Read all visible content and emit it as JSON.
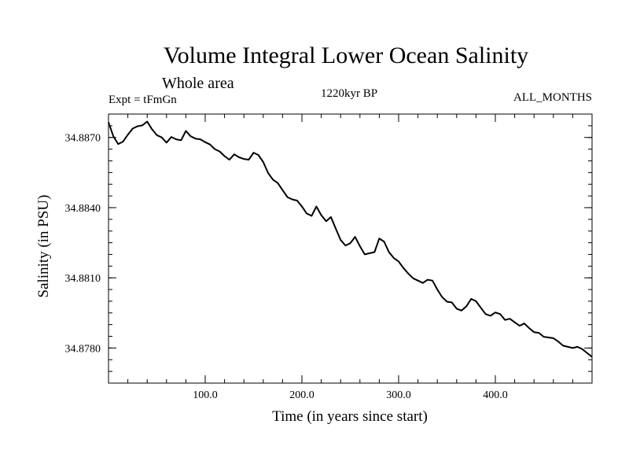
{
  "chart_data": {
    "type": "line",
    "title": "Volume Integral Lower Ocean Salinity",
    "subtitle": "Whole area",
    "experiment": "Expt = tFmGn",
    "period": "1220kyr BP",
    "months": "ALL_MONTHS",
    "xlabel": "Time (in years since start)",
    "ylabel": "Salinity (in PSU)",
    "xlim": [
      0,
      500
    ],
    "ylim": [
      34.8765,
      34.888
    ],
    "xticks": [
      100,
      200,
      300,
      400
    ],
    "xtick_labels": [
      "100.0",
      "200.0",
      "300.0",
      "400.0"
    ],
    "xminor_step": 20,
    "yticks": [
      34.878,
      34.881,
      34.884,
      34.887
    ],
    "ytick_labels": [
      "34.8780",
      "34.8810",
      "34.8840",
      "34.8870"
    ],
    "yminor_step": 0.0005,
    "grid": false,
    "series": [
      {
        "name": "Lower Ocean Salinity",
        "color": "#000000",
        "x": [
          0,
          5,
          10,
          15,
          20,
          25,
          30,
          35,
          40,
          45,
          50,
          55,
          60,
          65,
          70,
          75,
          80,
          85,
          90,
          95,
          100,
          105,
          110,
          115,
          120,
          125,
          130,
          135,
          140,
          145,
          150,
          155,
          160,
          165,
          170,
          175,
          180,
          185,
          190,
          195,
          200,
          205,
          210,
          215,
          220,
          225,
          230,
          235,
          240,
          245,
          250,
          255,
          260,
          265,
          270,
          275,
          280,
          285,
          290,
          295,
          300,
          305,
          310,
          315,
          320,
          325,
          330,
          335,
          340,
          345,
          350,
          355,
          360,
          365,
          370,
          375,
          380,
          385,
          390,
          395,
          400,
          405,
          410,
          415,
          420,
          425,
          430,
          435,
          440,
          445,
          450,
          455,
          460,
          465,
          470,
          475,
          480,
          485,
          490,
          495,
          500
        ],
        "y": [
          34.88765,
          34.88705,
          34.88672,
          34.88682,
          34.88712,
          34.88738,
          34.88748,
          34.88752,
          34.88768,
          34.88735,
          34.8871,
          34.887,
          34.88678,
          34.88702,
          34.88692,
          34.88688,
          34.88728,
          34.88705,
          34.88695,
          34.88692,
          34.8868,
          34.8867,
          34.8865,
          34.8864,
          34.8862,
          34.88605,
          34.88628,
          34.88615,
          34.88608,
          34.88605,
          34.88635,
          34.88625,
          34.88595,
          34.88548,
          34.8852,
          34.88505,
          34.88475,
          34.88445,
          34.88435,
          34.8843,
          34.88405,
          34.88375,
          34.88365,
          34.88405,
          34.88368,
          34.88342,
          34.8836,
          34.8831,
          34.88262,
          34.88238,
          34.88248,
          34.88275,
          34.88235,
          34.882,
          34.88205,
          34.8821,
          34.88268,
          34.88255,
          34.8821,
          34.88185,
          34.8817,
          34.88142,
          34.88118,
          34.88098,
          34.88088,
          34.88078,
          34.88092,
          34.88088,
          34.8805,
          34.88018,
          34.87998,
          34.87995,
          34.87968,
          34.8796,
          34.87978,
          34.8801,
          34.88,
          34.87972,
          34.87945,
          34.87938,
          34.87952,
          34.87945,
          34.8792,
          34.87925,
          34.8791,
          34.87895,
          34.87905,
          34.87885,
          34.87868,
          34.87865,
          34.87848,
          34.87845,
          34.87842,
          34.87828,
          34.8781,
          34.87805,
          34.878,
          34.87805,
          34.87795,
          34.87778,
          34.87762
        ]
      }
    ]
  }
}
